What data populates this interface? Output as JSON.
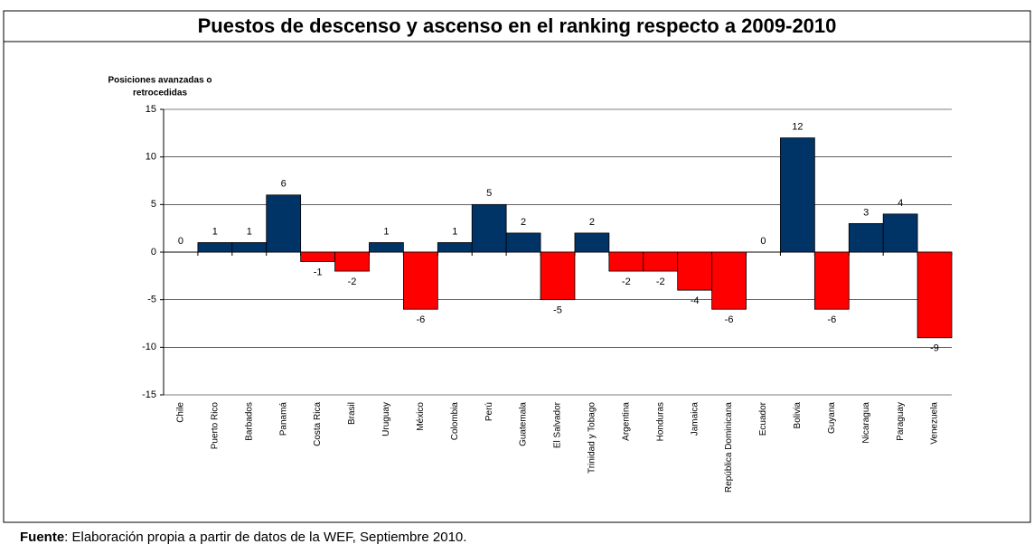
{
  "chart_data": {
    "type": "bar",
    "title": "Puestos de descenso y ascenso en el ranking respecto a 2009-2010",
    "y_label": [
      "Posiciones avanzadas o",
      "retrocedidas"
    ],
    "categories": [
      "Chile",
      "Puerto Rico",
      "Barbados",
      "Panamá",
      "Costa Rica",
      "Brasil",
      "Uruguay",
      "México",
      "Colombia",
      "Perú",
      "Guatemala",
      "El Salvador",
      "Trinidad y Tobago",
      "Argentina",
      "Honduras",
      "Jamaica",
      "República Dominicana",
      "Ecuador",
      "Bolivia",
      "Guyana",
      "Nicaragua",
      "Paraguay",
      "Venezuela"
    ],
    "values": [
      0,
      1,
      1,
      6,
      -1,
      -2,
      1,
      -6,
      1,
      5,
      2,
      -5,
      2,
      -2,
      -2,
      -4,
      -6,
      0,
      12,
      -6,
      3,
      4,
      -9
    ],
    "positive_color": "#003366",
    "negative_color": "#ff0000",
    "ylim": [
      -15,
      15
    ],
    "yticks": [
      -15,
      -10,
      -5,
      0,
      5,
      10,
      15
    ],
    "grid": true,
    "source": {
      "label": "Fuente",
      "text": ": Elaboración propia a partir de datos de la WEF, Septiembre 2010."
    }
  }
}
